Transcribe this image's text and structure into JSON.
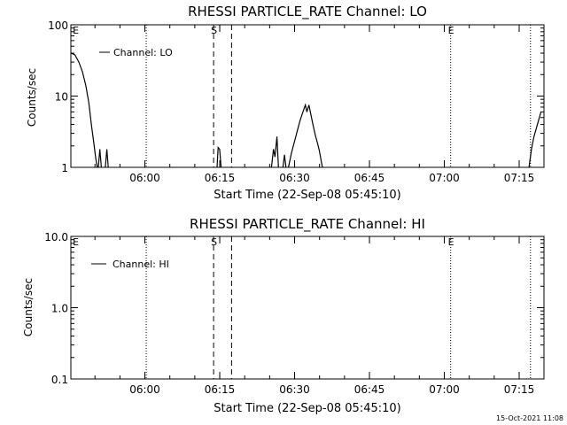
{
  "chart_data": [
    {
      "type": "line",
      "title": "RHESSI PARTICLE_RATE Channel: LO",
      "xlabel": "Start Time (22-Sep-08 05:45:10)",
      "ylabel": "Counts/sec",
      "yscale": "log",
      "xlim_min": [
        0,
        94.8
      ],
      "ylim": [
        1,
        100
      ],
      "x_tick_labels": [
        "06:00",
        "06:15",
        "06:30",
        "06:45",
        "07:00",
        "07:15"
      ],
      "x_tick_min": [
        14.83,
        29.83,
        44.83,
        59.83,
        74.83,
        89.83
      ],
      "y_ticks": [
        1,
        10,
        100
      ],
      "y_tick_labels": [
        "1",
        "10",
        "100"
      ],
      "grid": false,
      "legend_position": "top-left",
      "legend_entries": [
        "Channel: LO"
      ],
      "series": [
        {
          "name": "Channel: LO",
          "segments": [
            [
              [
                0.0,
                40
              ],
              [
                0.8,
                38
              ],
              [
                1.6,
                30
              ],
              [
                2.3,
                22
              ],
              [
                3.0,
                14
              ],
              [
                3.6,
                8
              ],
              [
                4.1,
                4
              ],
              [
                4.6,
                2.2
              ],
              [
                5.0,
                1.3
              ],
              [
                5.3,
                1.0
              ]
            ],
            [
              [
                5.5,
                1.0
              ],
              [
                5.8,
                1.8
              ],
              [
                6.1,
                1.0
              ]
            ],
            [
              [
                6.9,
                1.0
              ],
              [
                7.2,
                1.8
              ],
              [
                7.5,
                1.0
              ]
            ],
            [
              [
                29.3,
                1.0
              ],
              [
                29.5,
                1.9
              ],
              [
                29.8,
                1.8
              ],
              [
                30.1,
                1.0
              ]
            ],
            [
              [
                40.2,
                1.0
              ],
              [
                40.6,
                1.8
              ],
              [
                40.9,
                1.4
              ],
              [
                41.3,
                2.7
              ],
              [
                41.6,
                1.0
              ]
            ],
            [
              [
                42.5,
                1.0
              ],
              [
                42.8,
                1.5
              ],
              [
                43.1,
                1.0
              ]
            ],
            [
              [
                43.6,
                1.0
              ],
              [
                44.2,
                1.6
              ],
              [
                44.8,
                2.3
              ],
              [
                45.4,
                3.3
              ],
              [
                45.9,
                4.5
              ],
              [
                46.5,
                6
              ],
              [
                47.0,
                7.5
              ],
              [
                47.3,
                6
              ],
              [
                47.7,
                7.5
              ],
              [
                48.1,
                5.5
              ],
              [
                48.5,
                4
              ],
              [
                49.0,
                2.8
              ],
              [
                49.4,
                2.2
              ],
              [
                49.8,
                1.7
              ],
              [
                50.1,
                1.3
              ],
              [
                50.4,
                1.0
              ]
            ],
            [
              [
                91.8,
                1.0
              ],
              [
                92.3,
                1.8
              ],
              [
                92.8,
                2.7
              ],
              [
                93.3,
                3.6
              ],
              [
                93.8,
                4.8
              ],
              [
                94.2,
                6.0
              ]
            ]
          ]
        }
      ],
      "markers": [
        {
          "label": "E",
          "x_min": 0.2,
          "style": "none"
        },
        {
          "label": "",
          "x_min": 15.1,
          "style": "dotted"
        },
        {
          "label": "S",
          "x_min": 28.6,
          "style": "dashed"
        },
        {
          "label": "",
          "x_min": 32.2,
          "style": "dashed"
        },
        {
          "label": "E",
          "x_min": 76.1,
          "style": "dotted"
        },
        {
          "label": "",
          "x_min": 92.1,
          "style": "dotted"
        }
      ]
    },
    {
      "type": "line",
      "title": "RHESSI PARTICLE_RATE Channel: HI",
      "xlabel": "Start Time (22-Sep-08 05:45:10)",
      "ylabel": "Counts/sec",
      "yscale": "log",
      "xlim_min": [
        0,
        94.8
      ],
      "ylim": [
        0.1,
        10
      ],
      "x_tick_labels": [
        "06:00",
        "06:15",
        "06:30",
        "06:45",
        "07:00",
        "07:15"
      ],
      "x_tick_min": [
        14.83,
        29.83,
        44.83,
        59.83,
        74.83,
        89.83
      ],
      "y_ticks": [
        0.1,
        1,
        10
      ],
      "y_tick_labels": [
        "0.1",
        "1.0",
        "10.0"
      ],
      "grid": false,
      "legend_position": "top-left",
      "legend_entries": [
        "Channel: HI"
      ],
      "series": [
        {
          "name": "Channel: HI",
          "segments": []
        }
      ],
      "markers": [
        {
          "label": "E",
          "x_min": 0.2,
          "style": "none"
        },
        {
          "label": "",
          "x_min": 15.1,
          "style": "dotted"
        },
        {
          "label": "S",
          "x_min": 28.6,
          "style": "dashed"
        },
        {
          "label": "",
          "x_min": 32.2,
          "style": "dashed"
        },
        {
          "label": "E",
          "x_min": 76.1,
          "style": "dotted"
        },
        {
          "label": "",
          "x_min": 92.1,
          "style": "dotted"
        }
      ]
    }
  ],
  "footer": {
    "timestamp": "15-Oct-2021 11:08"
  }
}
